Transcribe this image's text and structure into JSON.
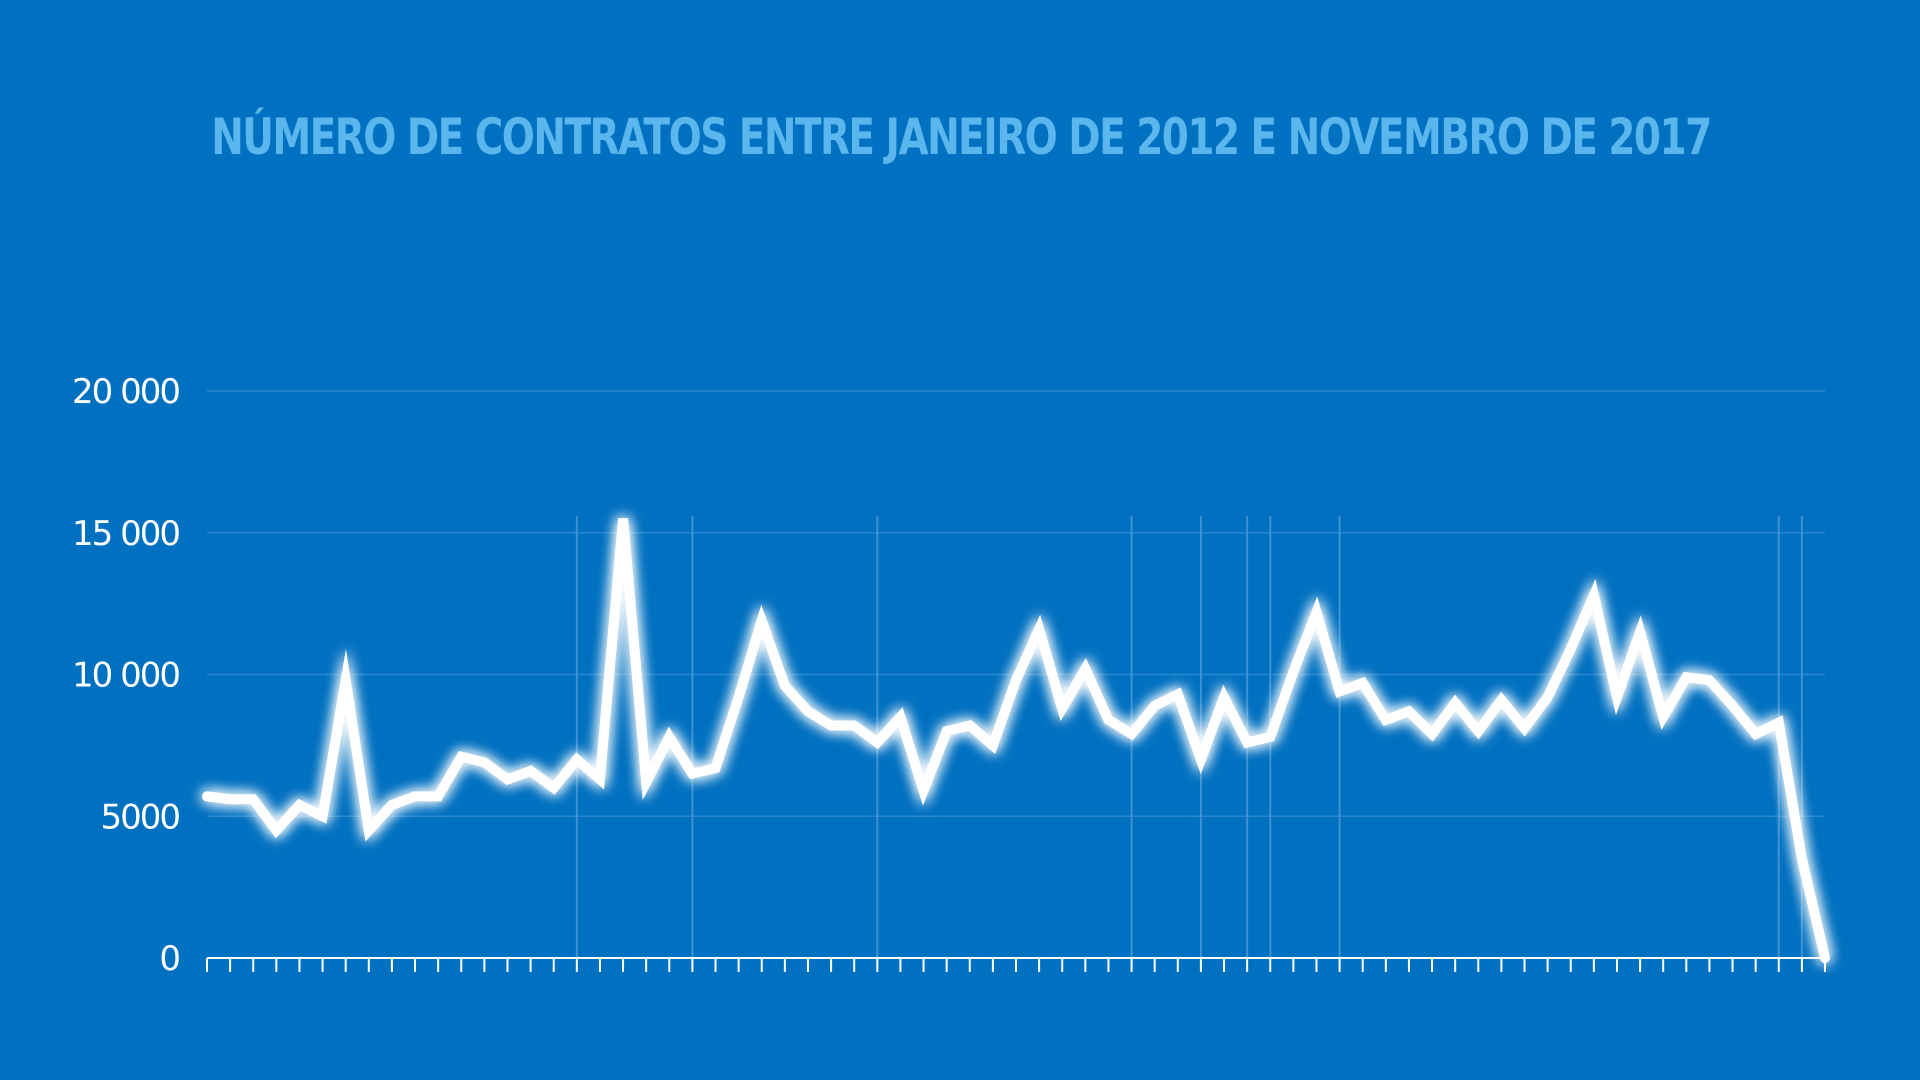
{
  "colors": {
    "background": "#0070c0",
    "title": "#5ab6ec",
    "line": "#ffffff",
    "grid": "#2a86cc"
  },
  "chart_data": {
    "type": "line",
    "title": "Número de contratos entre janeiro de 2012 e novembro de 2017",
    "xlabel": "",
    "ylabel": "",
    "ylim": [
      0,
      20000
    ],
    "yticks": [
      0,
      5000,
      10000,
      15000,
      20000
    ],
    "ytick_labels": [
      "0",
      "5000",
      "10 000",
      "15 000",
      "20 000"
    ],
    "grid": true,
    "x": [
      1,
      2,
      3,
      4,
      5,
      6,
      7,
      8,
      9,
      10,
      11,
      12,
      13,
      14,
      15,
      16,
      17,
      18,
      19,
      20,
      21,
      22,
      23,
      24,
      25,
      26,
      27,
      28,
      29,
      30,
      31,
      32,
      33,
      34,
      35,
      36,
      37,
      38,
      39,
      40,
      41,
      42,
      43,
      44,
      45,
      46,
      47,
      48,
      49,
      50,
      51,
      52,
      53,
      54,
      55,
      56,
      57,
      58,
      59,
      60,
      61,
      62,
      63,
      64,
      65,
      66,
      67,
      68,
      69,
      70,
      71
    ],
    "series": [
      {
        "values": [
          5700,
          5600,
          5600,
          4500,
          5400,
          5000,
          9800,
          4500,
          5400,
          5700,
          5700,
          7100,
          6900,
          6300,
          6600,
          6000,
          7000,
          6300,
          15500,
          6200,
          7800,
          6500,
          6700,
          9200,
          11900,
          9600,
          8700,
          8200,
          8200,
          7600,
          8500,
          5900,
          8000,
          8200,
          7500,
          9800,
          11600,
          8800,
          10200,
          8400,
          7900,
          8900,
          9300,
          7000,
          9200,
          7600,
          7800,
          10100,
          12200,
          9400,
          9700,
          8400,
          8700,
          7900,
          9000,
          8000,
          9100,
          8100,
          9200,
          10900,
          12800,
          9200,
          11500,
          8500,
          9900,
          9800,
          8900,
          7900,
          8300,
          3500,
          0
        ]
      }
    ]
  }
}
